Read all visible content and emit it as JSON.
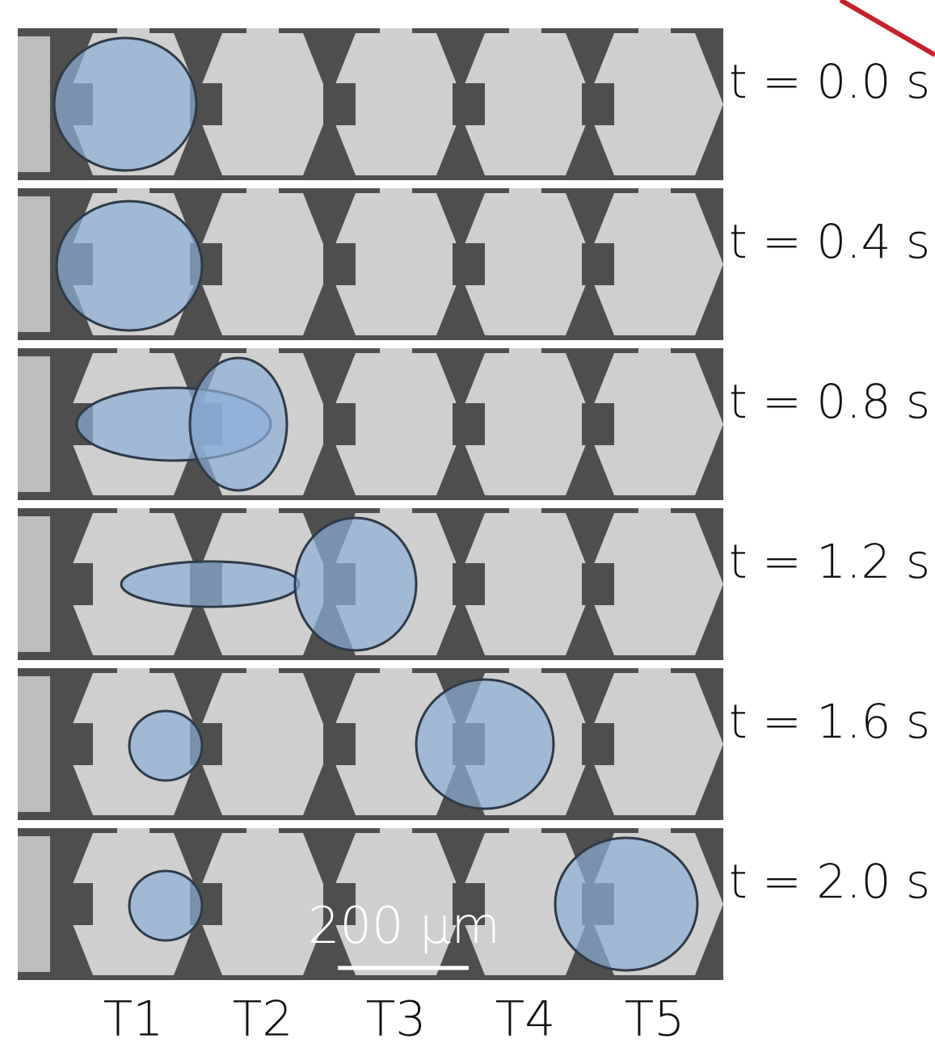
{
  "panels": [
    {
      "time": "t = 0.0 s"
    },
    {
      "time": "t = 0.4 s"
    },
    {
      "time": "t = 0.8 s"
    },
    {
      "time": "t = 1.2 s"
    },
    {
      "time": "t = 1.6 s"
    },
    {
      "time": "t = 2.0 s"
    }
  ],
  "scale_bar": "200 µm",
  "electrodes": [
    "T1",
    "T2",
    "T3",
    "T4",
    "T5"
  ]
}
